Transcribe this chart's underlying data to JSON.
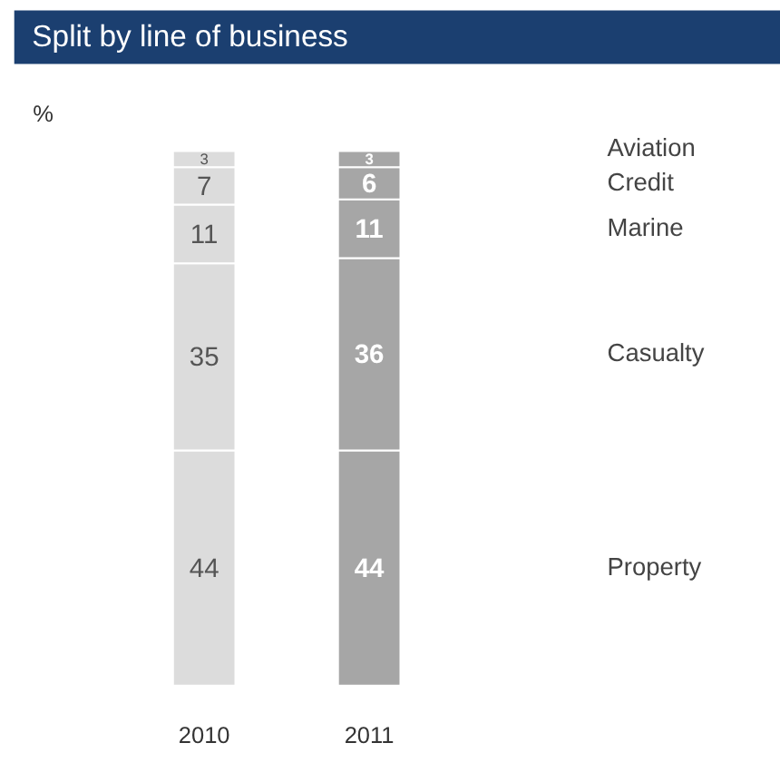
{
  "chart_data": {
    "type": "bar",
    "stacked": true,
    "title": "Split by line of business",
    "ylabel": "%",
    "categories": [
      "2010",
      "2011"
    ],
    "series": [
      {
        "name": "Property",
        "colors": [
          "#dcdcdc",
          "#a6a6a6"
        ],
        "values": [
          44,
          44
        ]
      },
      {
        "name": "Casualty",
        "colors": [
          "#dcdcdc",
          "#a6a6a6"
        ],
        "values": [
          35,
          36
        ]
      },
      {
        "name": "Marine",
        "colors": [
          "#dcdcdc",
          "#a6a6a6"
        ],
        "values": [
          11,
          11
        ]
      },
      {
        "name": "Credit",
        "colors": [
          "#dcdcdc",
          "#a6a6a6"
        ],
        "values": [
          7,
          6
        ]
      },
      {
        "name": "Aviation",
        "colors": [
          "#dcdcdc",
          "#a6a6a6"
        ],
        "values": [
          3,
          3
        ]
      }
    ],
    "ylim": [
      0,
      100
    ],
    "tick_labels": "x",
    "data_labels": true,
    "grid": false,
    "legend": false
  }
}
